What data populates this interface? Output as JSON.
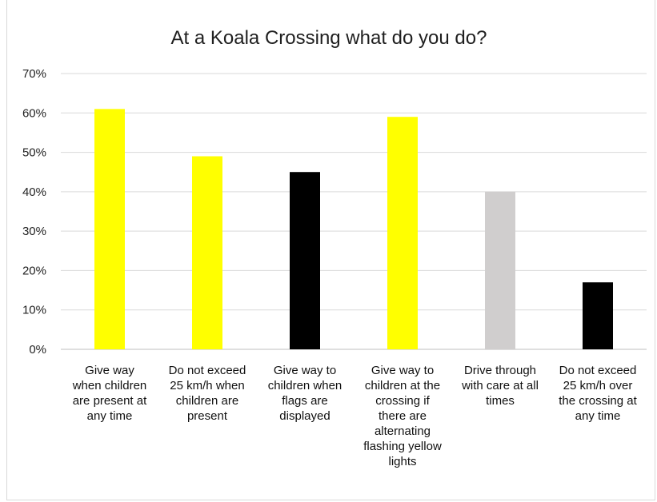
{
  "chart_data": {
    "type": "bar",
    "title": "At a Koala Crossing what do you do?",
    "xlabel": "",
    "ylabel": "",
    "ylim": [
      0,
      0.7
    ],
    "ytick_values": [
      0,
      0.1,
      0.2,
      0.3,
      0.4,
      0.5,
      0.6,
      0.7
    ],
    "ytick_labels": [
      "0%",
      "10%",
      "20%",
      "30%",
      "40%",
      "50%",
      "60%",
      "70%"
    ],
    "grid": true,
    "legend": "none",
    "categories": [
      "Give way when children are present at any time",
      "Do not exceed 25 km/h when children are present",
      "Give way to children when flags are displayed",
      "Give way to children at the crossing if there are alternating flashing yellow lights",
      "Drive through with care at all times",
      "Do not exceed 25 km/h over the crossing at any time"
    ],
    "category_lines": [
      [
        "Give way",
        "when children",
        "are present at",
        "any time"
      ],
      [
        "Do not exceed",
        "25 km/h when",
        "children are",
        "present"
      ],
      [
        "Give way to",
        "children when",
        "flags are",
        "displayed"
      ],
      [
        "Give way to",
        "children at the",
        "crossing if",
        "there are",
        "alternating",
        "flashing yellow",
        "lights"
      ],
      [
        "Drive through",
        "with care at all",
        "times"
      ],
      [
        "Do not exceed",
        "25 km/h over",
        "the crossing at",
        "any time"
      ]
    ],
    "values": [
      0.61,
      0.49,
      0.45,
      0.59,
      0.4,
      0.17
    ],
    "bar_colors": [
      "#ffff00",
      "#ffff00",
      "#000000",
      "#ffff00",
      "#d0cece",
      "#000000"
    ],
    "gridline_color": "#d9d9d9"
  }
}
